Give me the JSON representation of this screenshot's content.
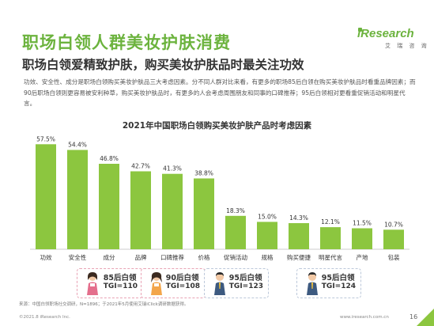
{
  "header": {
    "title": "职场白领人群美妆护肤消费",
    "subtitle": "职场白领爱精致护肤，购买美妆护肤品时最关注功效",
    "description": "功效、安全性、成分是职场白领购买美妆护肤品三大考虑因素。分不同人群对比来看，有更多的职场85后白领在购买美妆护肤品时看重品牌因素；而90后职场白领则更容易被安利种草，购买美妆护肤品时，有更多的人会考虑周围朋友和同事的口碑推荐；95后白领相对更看重促销活动和明星代言。"
  },
  "logo": {
    "name": "iResearch",
    "sub": "艾 瑞 咨 询"
  },
  "colors": {
    "bar": "#8cc63f",
    "title_green": "#6cb33e",
    "callout_pink": "#e9a3b5",
    "callout_blue": "#bcc8da"
  },
  "chart_data": {
    "type": "bar",
    "title": "2021年中国职场白领购买美妆护肤产品时考虑因素",
    "categories": [
      "功效",
      "安全性",
      "成分",
      "品牌",
      "口碑推荐",
      "价格",
      "促销活动",
      "规格",
      "购买便捷",
      "明星代言",
      "产地",
      "包装"
    ],
    "values": [
      57.5,
      54.4,
      46.8,
      42.7,
      41.3,
      38.8,
      18.3,
      15.0,
      14.3,
      12.1,
      11.5,
      10.7
    ],
    "value_labels": [
      "57.5%",
      "54.4%",
      "46.8%",
      "42.7%",
      "41.3%",
      "38.8%",
      "18.3%",
      "15.0%",
      "14.3%",
      "12.1%",
      "11.5%",
      "10.7%"
    ],
    "ylim": [
      0,
      65
    ],
    "grid": false,
    "legend": "none"
  },
  "callouts": [
    {
      "label": "85后白领",
      "tgi": "TGI=110",
      "icon": "woman-icon"
    },
    {
      "label": "90后白领",
      "tgi": "TGI=108",
      "icon": "woman-icon"
    },
    {
      "label": "95后白领",
      "tgi": "TGI=123",
      "icon": "man-icon"
    },
    {
      "label": "95后白领",
      "tgi": "TGI=124",
      "icon": "man-icon"
    }
  ],
  "footnote": "来源：中国白领职场社交调研，N=1896；于2021年5月使用艾瑞iClick调研数据获得。",
  "footer": {
    "copyright": "©2021.8 iResearch Inc.",
    "website": "www.iresearch.com.cn",
    "page": "16"
  }
}
